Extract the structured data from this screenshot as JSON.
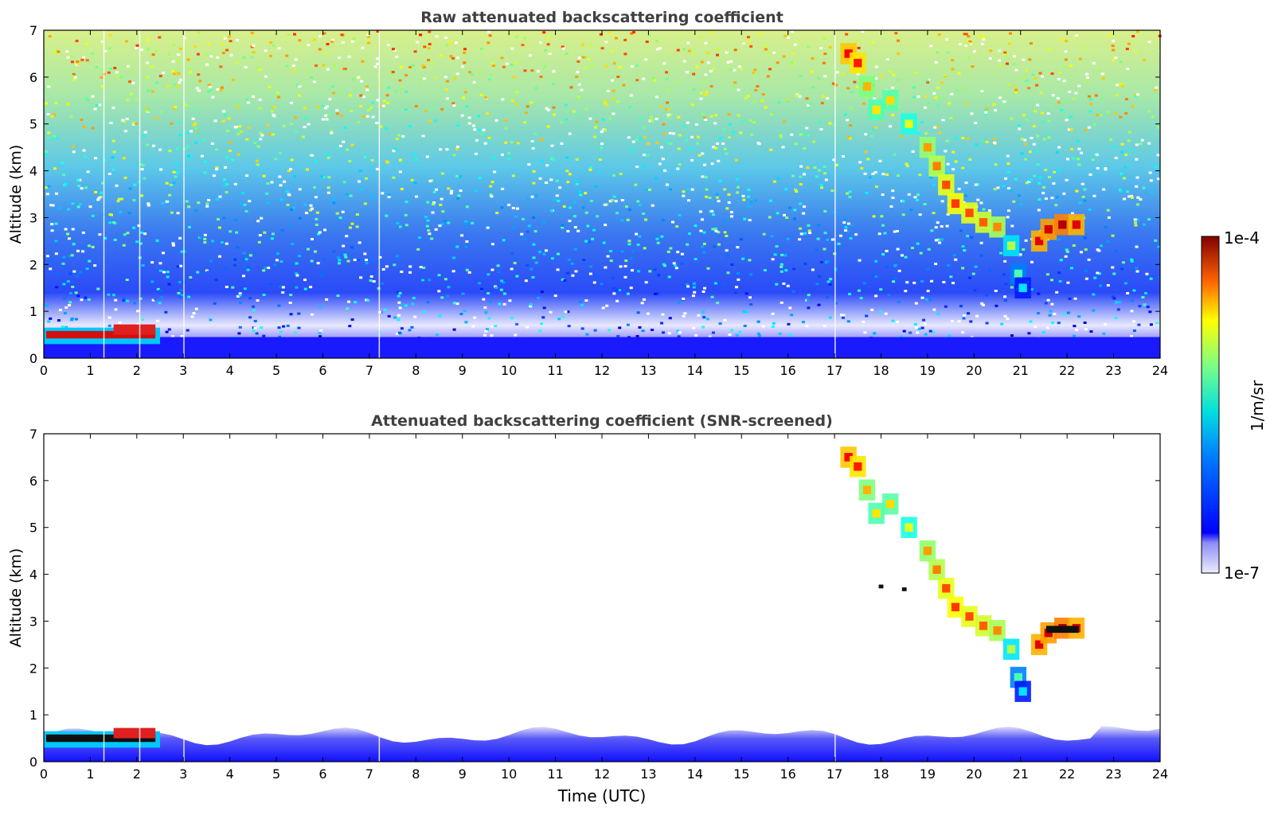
{
  "chart_data": [
    {
      "type": "heatmap",
      "title": "Raw attenuated backscattering coefficient",
      "xlabel": "",
      "ylabel": "Altitude (km)",
      "xlim": [
        0,
        24
      ],
      "ylim": [
        0,
        7
      ],
      "x_ticks": [
        "0",
        "1",
        "2",
        "3",
        "4",
        "5",
        "6",
        "7",
        "8",
        "9",
        "10",
        "11",
        "12",
        "13",
        "14",
        "15",
        "16",
        "17",
        "18",
        "19",
        "20",
        "21",
        "22",
        "23",
        "24"
      ],
      "y_ticks": [
        "0",
        "1",
        "2",
        "3",
        "4",
        "5",
        "6",
        "7"
      ]
    },
    {
      "type": "heatmap",
      "title": "Attenuated backscattering coefficient (SNR-screened)",
      "xlabel": "Time (UTC)",
      "ylabel": "Altitude (km)",
      "xlim": [
        0,
        24
      ],
      "ylim": [
        0,
        7
      ],
      "x_ticks": [
        "0",
        "1",
        "2",
        "3",
        "4",
        "5",
        "6",
        "7",
        "8",
        "9",
        "10",
        "11",
        "12",
        "13",
        "14",
        "15",
        "16",
        "17",
        "18",
        "19",
        "20",
        "21",
        "22",
        "23",
        "24"
      ],
      "y_ticks": [
        "0",
        "1",
        "2",
        "3",
        "4",
        "5",
        "6",
        "7"
      ]
    }
  ],
  "colorbar": {
    "label": "1/m/sr",
    "max_label": "1e-4",
    "min_label": "1e-7",
    "colormap": "jet",
    "scale": "log",
    "range": [
      1e-07,
      0.0001
    ]
  }
}
